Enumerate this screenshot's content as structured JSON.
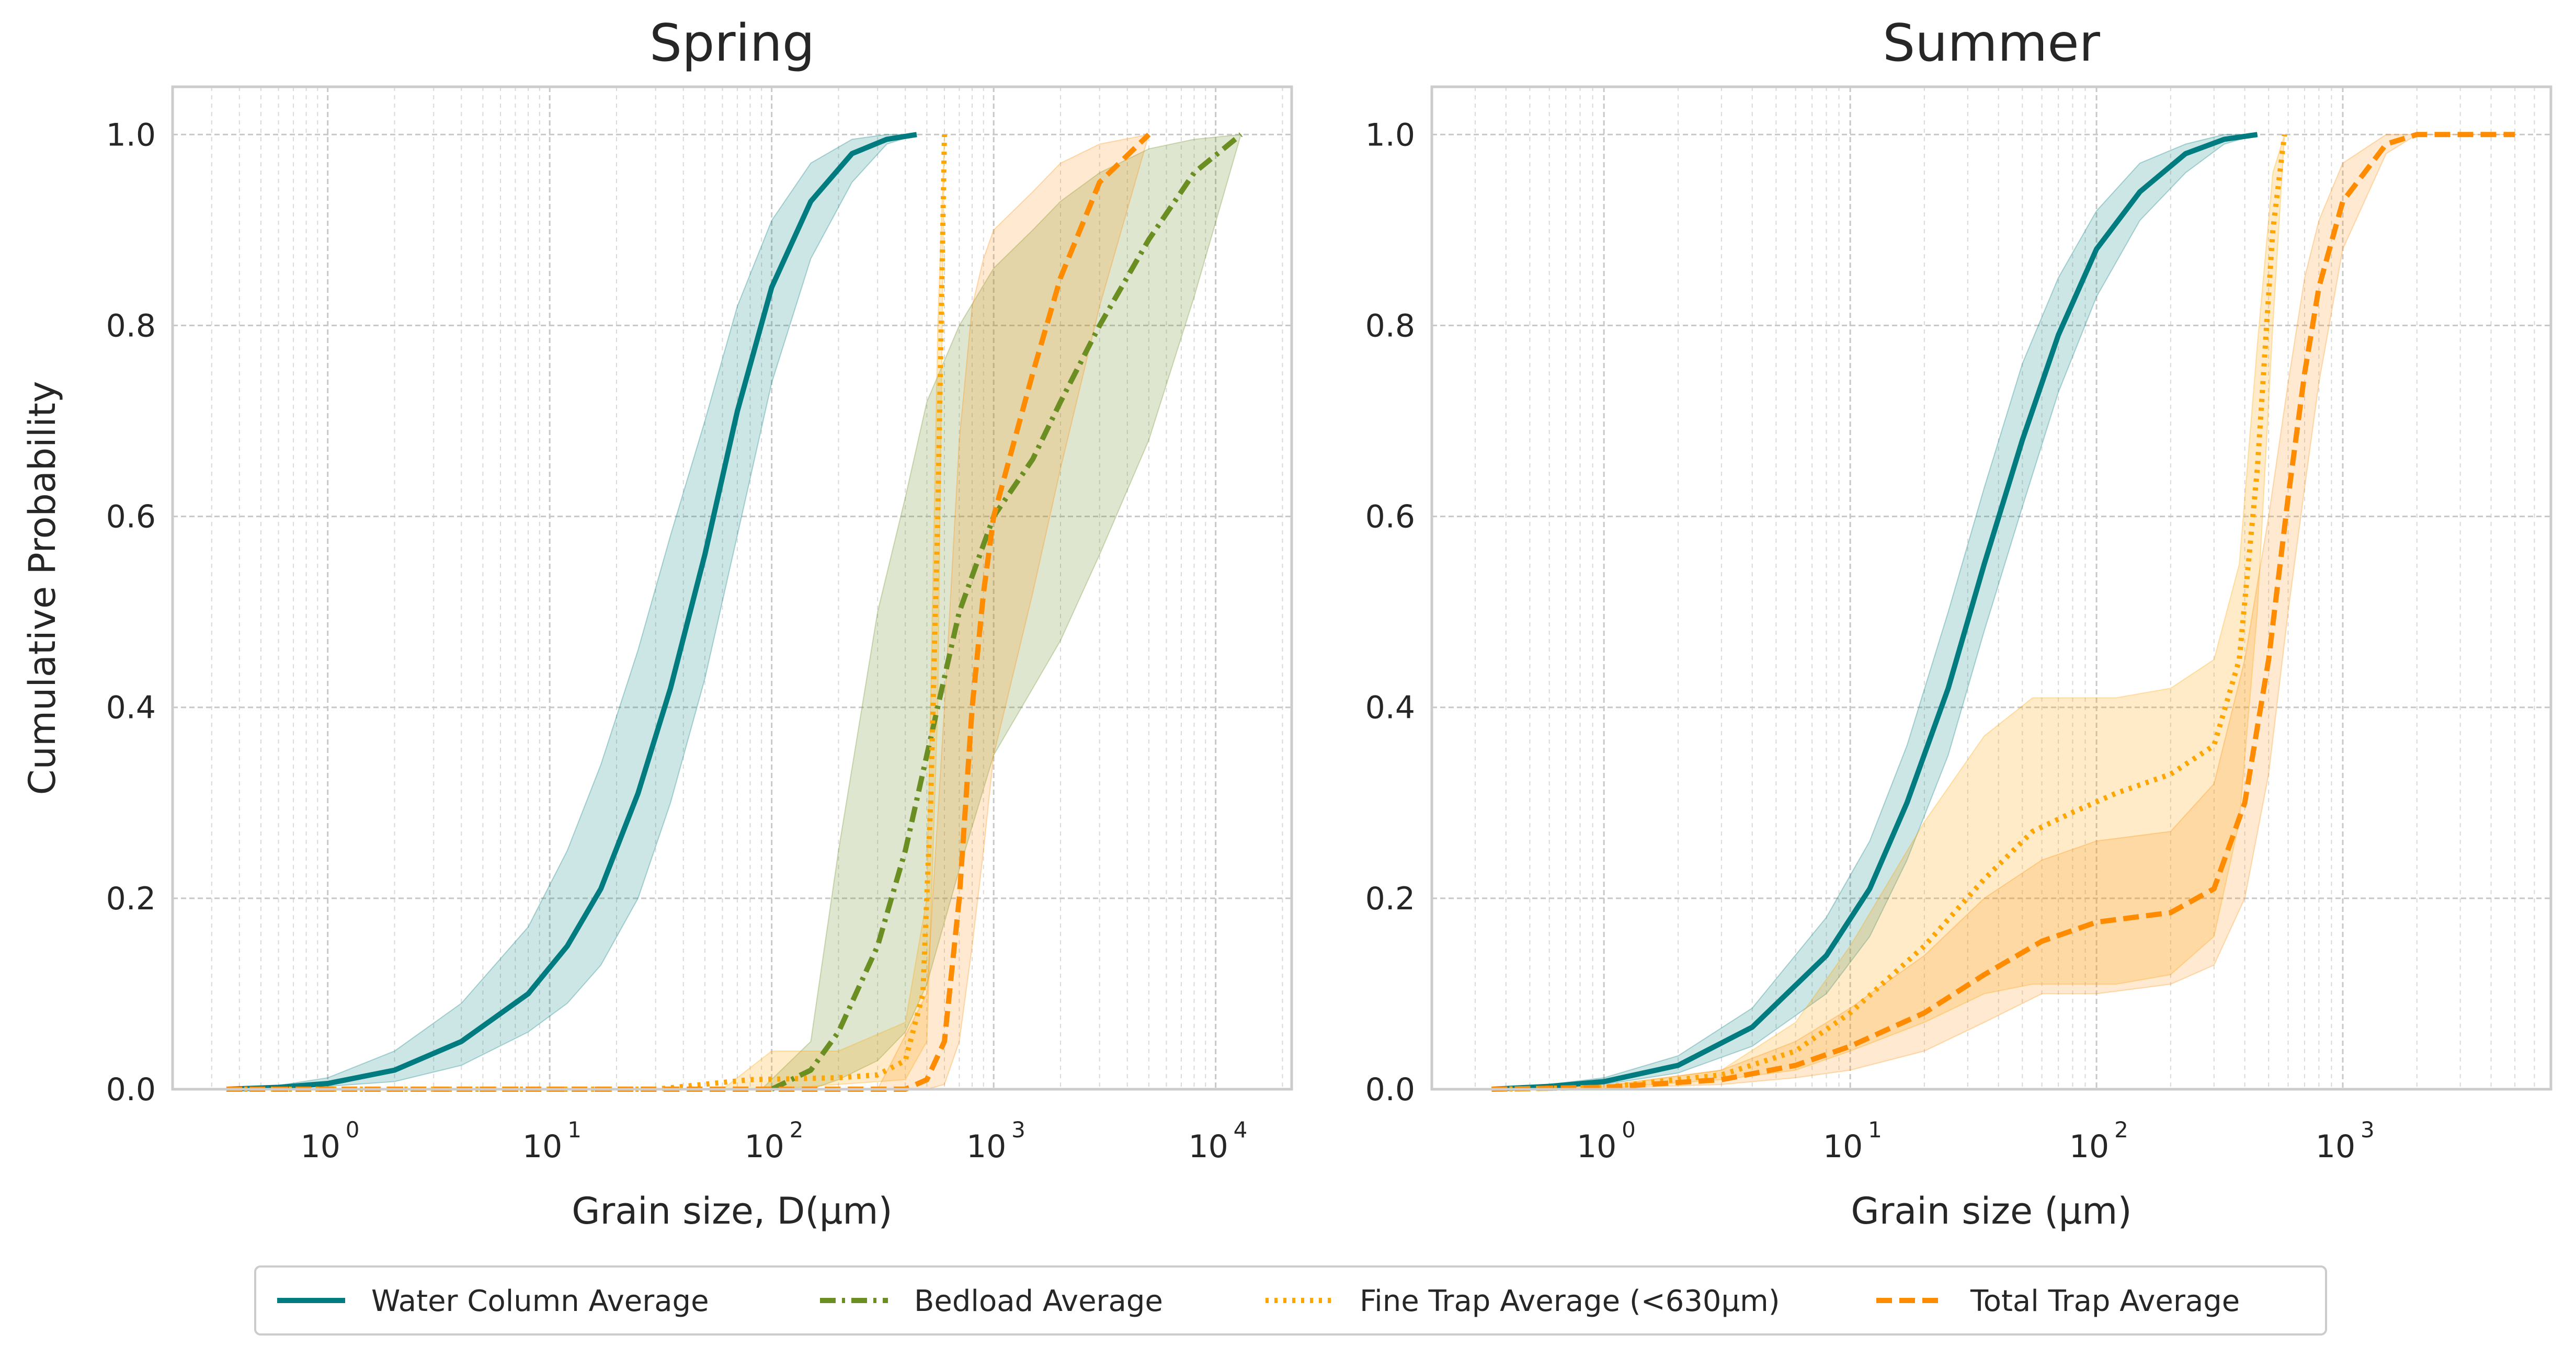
{
  "chart_data": [
    {
      "type": "line",
      "title": "Spring",
      "xlabel": "Grain size, D(μm)",
      "ylabel": "Cumulative Probability",
      "xscale": "log",
      "xlim": [
        0.2,
        22000
      ],
      "ylim": [
        0,
        1.05
      ],
      "grid": true,
      "xticks": [
        {
          "base": "10",
          "exp": "0",
          "value": 1
        },
        {
          "base": "10",
          "exp": "1",
          "value": 10
        },
        {
          "base": "10",
          "exp": "2",
          "value": 100
        },
        {
          "base": "10",
          "exp": "3",
          "value": 1000
        },
        {
          "base": "10",
          "exp": "4",
          "value": 10000
        }
      ],
      "yticks": [
        "0.0",
        "0.2",
        "0.4",
        "0.6",
        "0.8",
        "1.0"
      ],
      "series": [
        {
          "name": "Water Column Average",
          "color": "#007b7f",
          "style": "solid",
          "points": [
            [
              0.35,
              0
            ],
            [
              0.6,
              0.002
            ],
            [
              1,
              0.006
            ],
            [
              2,
              0.02
            ],
            [
              4,
              0.05
            ],
            [
              8,
              0.1
            ],
            [
              12,
              0.15
            ],
            [
              17,
              0.21
            ],
            [
              25,
              0.31
            ],
            [
              35,
              0.42
            ],
            [
              50,
              0.56
            ],
            [
              70,
              0.71
            ],
            [
              100,
              0.84
            ],
            [
              150,
              0.93
            ],
            [
              230,
              0.98
            ],
            [
              330,
              0.995
            ],
            [
              450,
              1.0
            ]
          ],
          "band": [
            [
              0.35,
              0,
              0
            ],
            [
              0.6,
              0.001,
              0.004
            ],
            [
              1,
              0.003,
              0.012
            ],
            [
              2,
              0.008,
              0.04
            ],
            [
              4,
              0.025,
              0.09
            ],
            [
              8,
              0.06,
              0.17
            ],
            [
              12,
              0.09,
              0.25
            ],
            [
              17,
              0.13,
              0.34
            ],
            [
              25,
              0.2,
              0.46
            ],
            [
              35,
              0.3,
              0.58
            ],
            [
              50,
              0.43,
              0.7
            ],
            [
              70,
              0.58,
              0.82
            ],
            [
              100,
              0.74,
              0.91
            ],
            [
              150,
              0.87,
              0.97
            ],
            [
              230,
              0.95,
              0.995
            ],
            [
              330,
              0.99,
              1.0
            ],
            [
              450,
              1.0,
              1.0
            ]
          ]
        },
        {
          "name": "Bedload Average",
          "color": "#6b8e23",
          "style": "dashdot",
          "points": [
            [
              100,
              0
            ],
            [
              150,
              0.02
            ],
            [
              200,
              0.06
            ],
            [
              300,
              0.15
            ],
            [
              400,
              0.25
            ],
            [
              500,
              0.35
            ],
            [
              700,
              0.5
            ],
            [
              1000,
              0.6
            ],
            [
              1500,
              0.66
            ],
            [
              2000,
              0.72
            ],
            [
              3000,
              0.8
            ],
            [
              5000,
              0.89
            ],
            [
              8000,
              0.96
            ],
            [
              13000,
              1.0
            ]
          ],
          "band": [
            [
              90,
              0,
              0
            ],
            [
              150,
              0,
              0.05
            ],
            [
              200,
              0.01,
              0.25
            ],
            [
              300,
              0.03,
              0.5
            ],
            [
              400,
              0.06,
              0.62
            ],
            [
              500,
              0.11,
              0.72
            ],
            [
              700,
              0.23,
              0.8
            ],
            [
              1000,
              0.35,
              0.86
            ],
            [
              1500,
              0.42,
              0.9
            ],
            [
              2000,
              0.47,
              0.93
            ],
            [
              3000,
              0.56,
              0.96
            ],
            [
              5000,
              0.68,
              0.985
            ],
            [
              8000,
              0.83,
              0.995
            ],
            [
              13000,
              1.0,
              1.0
            ]
          ]
        },
        {
          "name": "Fine Trap Average (<630μm)",
          "color": "#ffa500",
          "style": "dotted",
          "points": [
            [
              0.35,
              0
            ],
            [
              30,
              0
            ],
            [
              80,
              0.01
            ],
            [
              200,
              0.012
            ],
            [
              300,
              0.015
            ],
            [
              400,
              0.03
            ],
            [
              480,
              0.1
            ],
            [
              520,
              0.3
            ],
            [
              560,
              0.6
            ],
            [
              580,
              0.8
            ],
            [
              600,
              1.0
            ]
          ],
          "band": [
            [
              0.35,
              0,
              0
            ],
            [
              60,
              0,
              0
            ],
            [
              100,
              0,
              0.04
            ],
            [
              200,
              0.005,
              0.04
            ],
            [
              400,
              0.01,
              0.07
            ],
            [
              500,
              0.05,
              0.2
            ],
            [
              560,
              0.4,
              0.8
            ],
            [
              600,
              1.0,
              1.0
            ]
          ]
        },
        {
          "name": "Total Trap Average",
          "color": "#ff8c00",
          "style": "dashed",
          "points": [
            [
              0.35,
              0
            ],
            [
              400,
              0
            ],
            [
              500,
              0.01
            ],
            [
              600,
              0.05
            ],
            [
              700,
              0.2
            ],
            [
              800,
              0.4
            ],
            [
              900,
              0.52
            ],
            [
              1000,
              0.6
            ],
            [
              1500,
              0.75
            ],
            [
              2000,
              0.85
            ],
            [
              3000,
              0.95
            ],
            [
              5000,
              1.0
            ]
          ],
          "band": [
            [
              300,
              0,
              0
            ],
            [
              500,
              0,
              0.1
            ],
            [
              600,
              0.005,
              0.4
            ],
            [
              700,
              0.05,
              0.68
            ],
            [
              800,
              0.15,
              0.82
            ],
            [
              900,
              0.25,
              0.87
            ],
            [
              1000,
              0.35,
              0.9
            ],
            [
              1500,
              0.52,
              0.94
            ],
            [
              2000,
              0.65,
              0.97
            ],
            [
              3000,
              0.82,
              0.99
            ],
            [
              5000,
              1.0,
              1.0
            ]
          ]
        }
      ]
    },
    {
      "type": "line",
      "title": "Summer",
      "xlabel": "Grain size (μm)",
      "ylabel": "",
      "xscale": "log",
      "xlim": [
        0.2,
        7000
      ],
      "ylim": [
        0,
        1.05
      ],
      "grid": true,
      "xticks": [
        {
          "base": "10",
          "exp": "0",
          "value": 1
        },
        {
          "base": "10",
          "exp": "1",
          "value": 10
        },
        {
          "base": "10",
          "exp": "2",
          "value": 100
        },
        {
          "base": "10",
          "exp": "3",
          "value": 1000
        }
      ],
      "yticks": [
        "0.0",
        "0.2",
        "0.4",
        "0.6",
        "0.8",
        "1.0"
      ],
      "series": [
        {
          "name": "Water Column Average",
          "color": "#007b7f",
          "style": "solid",
          "points": [
            [
              0.35,
              0
            ],
            [
              0.6,
              0.003
            ],
            [
              1,
              0.008
            ],
            [
              2,
              0.025
            ],
            [
              4,
              0.065
            ],
            [
              8,
              0.14
            ],
            [
              12,
              0.21
            ],
            [
              17,
              0.3
            ],
            [
              25,
              0.42
            ],
            [
              35,
              0.55
            ],
            [
              50,
              0.68
            ],
            [
              70,
              0.79
            ],
            [
              100,
              0.88
            ],
            [
              150,
              0.94
            ],
            [
              230,
              0.98
            ],
            [
              330,
              0.995
            ],
            [
              450,
              1.0
            ]
          ],
          "band": [
            [
              0.35,
              0,
              0
            ],
            [
              0.6,
              0.002,
              0.005
            ],
            [
              1,
              0.005,
              0.012
            ],
            [
              2,
              0.017,
              0.035
            ],
            [
              4,
              0.045,
              0.085
            ],
            [
              8,
              0.1,
              0.18
            ],
            [
              12,
              0.16,
              0.26
            ],
            [
              17,
              0.24,
              0.36
            ],
            [
              25,
              0.35,
              0.5
            ],
            [
              35,
              0.48,
              0.63
            ],
            [
              50,
              0.61,
              0.76
            ],
            [
              70,
              0.73,
              0.85
            ],
            [
              100,
              0.83,
              0.92
            ],
            [
              150,
              0.91,
              0.97
            ],
            [
              230,
              0.96,
              0.99
            ],
            [
              330,
              0.99,
              1.0
            ],
            [
              450,
              1.0,
              1.0
            ]
          ]
        },
        {
          "name": "Fine Trap Average (<630μm)",
          "color": "#ffa500",
          "style": "dotted",
          "points": [
            [
              0.35,
              0
            ],
            [
              1,
              0.002
            ],
            [
              3,
              0.015
            ],
            [
              6,
              0.04
            ],
            [
              10,
              0.08
            ],
            [
              20,
              0.15
            ],
            [
              35,
              0.22
            ],
            [
              55,
              0.27
            ],
            [
              80,
              0.29
            ],
            [
              120,
              0.31
            ],
            [
              200,
              0.33
            ],
            [
              300,
              0.36
            ],
            [
              380,
              0.45
            ],
            [
              450,
              0.65
            ],
            [
              520,
              0.9
            ],
            [
              580,
              1.0
            ]
          ],
          "band": [
            [
              0.35,
              0,
              0
            ],
            [
              1,
              0.001,
              0.003
            ],
            [
              3,
              0.01,
              0.02
            ],
            [
              6,
              0.02,
              0.07
            ],
            [
              10,
              0.04,
              0.15
            ],
            [
              20,
              0.07,
              0.28
            ],
            [
              35,
              0.1,
              0.37
            ],
            [
              55,
              0.11,
              0.41
            ],
            [
              80,
              0.11,
              0.41
            ],
            [
              120,
              0.11,
              0.41
            ],
            [
              200,
              0.12,
              0.42
            ],
            [
              300,
              0.16,
              0.45
            ],
            [
              380,
              0.28,
              0.55
            ],
            [
              450,
              0.5,
              0.78
            ],
            [
              520,
              0.8,
              0.96
            ],
            [
              580,
              1.0,
              1.0
            ]
          ]
        },
        {
          "name": "Total Trap Average",
          "color": "#ff8c00",
          "style": "dashed",
          "points": [
            [
              0.35,
              0
            ],
            [
              1,
              0.002
            ],
            [
              3,
              0.01
            ],
            [
              6,
              0.025
            ],
            [
              10,
              0.045
            ],
            [
              20,
              0.08
            ],
            [
              35,
              0.12
            ],
            [
              60,
              0.155
            ],
            [
              100,
              0.175
            ],
            [
              200,
              0.185
            ],
            [
              300,
              0.21
            ],
            [
              400,
              0.3
            ],
            [
              500,
              0.45
            ],
            [
              600,
              0.62
            ],
            [
              700,
              0.75
            ],
            [
              800,
              0.84
            ],
            [
              1000,
              0.93
            ],
            [
              1500,
              0.99
            ],
            [
              2000,
              1.0
            ],
            [
              5000,
              1.0
            ]
          ],
          "band": [
            [
              0.35,
              0,
              0
            ],
            [
              1,
              0.001,
              0.004
            ],
            [
              3,
              0.005,
              0.02
            ],
            [
              6,
              0.012,
              0.05
            ],
            [
              10,
              0.02,
              0.085
            ],
            [
              20,
              0.04,
              0.14
            ],
            [
              35,
              0.07,
              0.2
            ],
            [
              60,
              0.1,
              0.24
            ],
            [
              100,
              0.1,
              0.26
            ],
            [
              200,
              0.11,
              0.27
            ],
            [
              300,
              0.13,
              0.32
            ],
            [
              400,
              0.2,
              0.45
            ],
            [
              500,
              0.33,
              0.6
            ],
            [
              600,
              0.5,
              0.74
            ],
            [
              700,
              0.63,
              0.85
            ],
            [
              800,
              0.74,
              0.91
            ],
            [
              1000,
              0.88,
              0.97
            ],
            [
              1500,
              0.98,
              1.0
            ],
            [
              2000,
              1.0,
              1.0
            ],
            [
              5000,
              1.0,
              1.0
            ]
          ]
        }
      ]
    }
  ],
  "legend": {
    "placement": "bottom-center",
    "items": [
      {
        "label": "Water Column Average",
        "color": "#007b7f",
        "style": "solid"
      },
      {
        "label": "Bedload Average",
        "color": "#6b8e23",
        "style": "dashdot"
      },
      {
        "label": "Fine Trap Average (<630μm)",
        "color": "#ffa500",
        "style": "dotted"
      },
      {
        "label": "Total Trap Average",
        "color": "#ff8c00",
        "style": "dashed"
      }
    ]
  }
}
